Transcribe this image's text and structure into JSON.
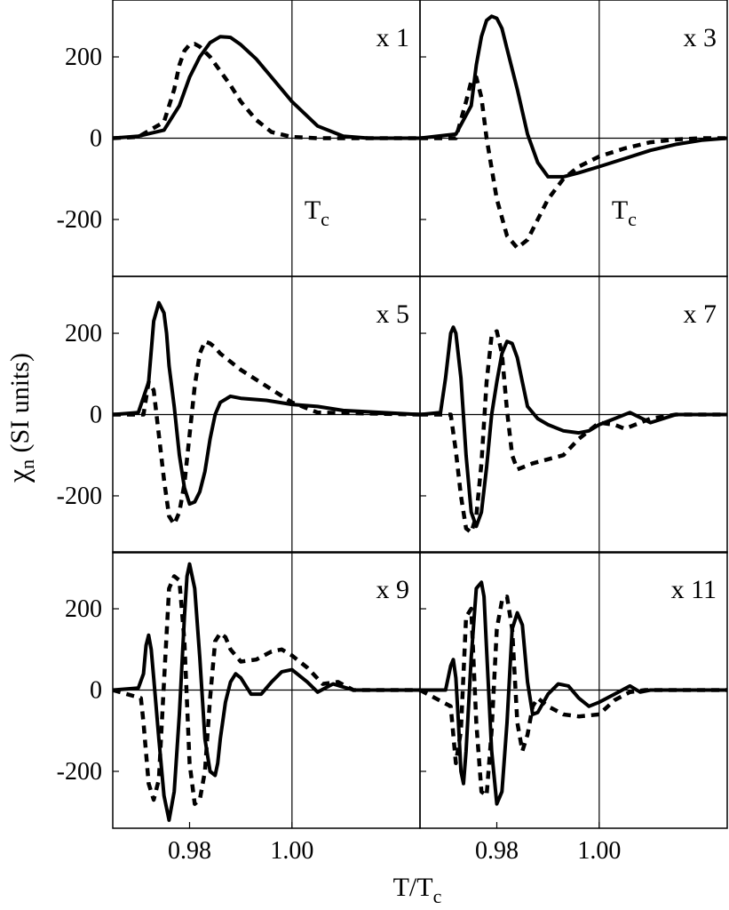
{
  "figure": {
    "ylabel_symbol": "χ",
    "ylabel_sub": "n",
    "ylabel_rest": " (SI units)",
    "xlabel_main": "T/T",
    "xlabel_sub": "c"
  },
  "chart_data": [
    {
      "type": "line",
      "annotation": "x 1",
      "tc_label": "T",
      "tc_sub": "c",
      "xlim": [
        0.965,
        1.025
      ],
      "ylim": [
        -340,
        340
      ],
      "yticks": [
        "200",
        "0",
        "-200"
      ],
      "ytick_values": [
        200,
        0,
        -200
      ],
      "xticks": [],
      "xtick_values": [],
      "tc_x": 1.0,
      "series": [
        {
          "style": "solid",
          "x": [
            0.965,
            0.97,
            0.975,
            0.978,
            0.98,
            0.982,
            0.984,
            0.986,
            0.988,
            0.99,
            0.993,
            0.996,
            1.0,
            1.005,
            1.01,
            1.015,
            1.025
          ],
          "y": [
            0,
            5,
            20,
            80,
            150,
            200,
            235,
            250,
            248,
            230,
            195,
            150,
            90,
            30,
            5,
            0,
            0
          ]
        },
        {
          "style": "dashed",
          "x": [
            0.965,
            0.97,
            0.975,
            0.977,
            0.978,
            0.979,
            0.98,
            0.981,
            0.982,
            0.984,
            0.986,
            0.988,
            0.99,
            0.993,
            0.996,
            1.0,
            1.005,
            1.025
          ],
          "y": [
            0,
            3,
            40,
            120,
            180,
            215,
            230,
            232,
            225,
            200,
            165,
            130,
            90,
            45,
            15,
            3,
            0,
            0
          ]
        }
      ]
    },
    {
      "type": "line",
      "annotation": "x 3",
      "tc_label": "T",
      "tc_sub": "c",
      "xlim": [
        0.965,
        1.025
      ],
      "ylim": [
        -340,
        340
      ],
      "yticks": [],
      "ytick_values": [
        200,
        0,
        -200
      ],
      "xticks": [],
      "xtick_values": [],
      "tc_x": 1.0,
      "series": [
        {
          "style": "solid",
          "x": [
            0.965,
            0.972,
            0.975,
            0.976,
            0.977,
            0.978,
            0.979,
            0.98,
            0.981,
            0.982,
            0.984,
            0.986,
            0.988,
            0.99,
            0.993,
            0.996,
            1.0,
            1.005,
            1.01,
            1.015,
            1.02,
            1.025
          ],
          "y": [
            0,
            10,
            80,
            180,
            250,
            290,
            300,
            295,
            270,
            220,
            120,
            10,
            -60,
            -95,
            -95,
            -85,
            -70,
            -50,
            -30,
            -15,
            -5,
            0
          ]
        },
        {
          "style": "dashed",
          "x": [
            0.965,
            0.972,
            0.974,
            0.975,
            0.976,
            0.977,
            0.978,
            0.98,
            0.982,
            0.984,
            0.986,
            0.988,
            0.99,
            0.993,
            0.996,
            1.0,
            1.005,
            1.01,
            1.015,
            1.02,
            1.025
          ],
          "y": [
            0,
            0,
            90,
            140,
            150,
            100,
            0,
            -150,
            -240,
            -270,
            -250,
            -200,
            -150,
            -100,
            -70,
            -45,
            -25,
            -10,
            -3,
            0,
            0
          ]
        }
      ]
    },
    {
      "type": "line",
      "annotation": "x 5",
      "tc_label": "",
      "tc_sub": "",
      "xlim": [
        0.965,
        1.025
      ],
      "ylim": [
        -340,
        340
      ],
      "yticks": [
        "200",
        "0",
        "-200"
      ],
      "ytick_values": [
        200,
        0,
        -200
      ],
      "xticks": [],
      "xtick_values": [],
      "tc_x": 1.0,
      "series": [
        {
          "style": "solid",
          "x": [
            0.965,
            0.97,
            0.972,
            0.973,
            0.974,
            0.975,
            0.9755,
            0.976,
            0.977,
            0.978,
            0.979,
            0.98,
            0.981,
            0.982,
            0.983,
            0.984,
            0.985,
            0.986,
            0.988,
            0.99,
            0.995,
            1.0,
            1.005,
            1.01,
            1.025
          ],
          "y": [
            0,
            5,
            80,
            230,
            275,
            250,
            200,
            120,
            20,
            -100,
            -180,
            -220,
            -215,
            -190,
            -140,
            -60,
            0,
            30,
            45,
            40,
            35,
            25,
            20,
            10,
            0
          ]
        },
        {
          "style": "dashed",
          "x": [
            0.965,
            0.971,
            0.972,
            0.973,
            0.974,
            0.975,
            0.976,
            0.977,
            0.978,
            0.979,
            0.98,
            0.981,
            0.982,
            0.983,
            0.984,
            0.985,
            0.986,
            0.988,
            0.99,
            0.995,
            1.0,
            1.003,
            1.005,
            1.025
          ],
          "y": [
            0,
            0,
            80,
            60,
            -50,
            -160,
            -250,
            -270,
            -240,
            -170,
            -50,
            70,
            150,
            180,
            175,
            165,
            150,
            130,
            110,
            70,
            30,
            15,
            5,
            0
          ]
        }
      ]
    },
    {
      "type": "line",
      "annotation": "x 7",
      "tc_label": "",
      "tc_sub": "",
      "xlim": [
        0.965,
        1.025
      ],
      "ylim": [
        -340,
        340
      ],
      "yticks": [],
      "ytick_values": [
        200,
        0,
        -200
      ],
      "xticks": [],
      "xtick_values": [],
      "tc_x": 1.0,
      "series": [
        {
          "style": "solid",
          "x": [
            0.965,
            0.969,
            0.97,
            0.971,
            0.9715,
            0.972,
            0.973,
            0.974,
            0.975,
            0.976,
            0.977,
            0.978,
            0.979,
            0.98,
            0.981,
            0.982,
            0.983,
            0.984,
            0.985,
            0.986,
            0.988,
            0.99,
            0.993,
            0.996,
            0.998,
            1.0,
            1.003,
            1.006,
            1.01,
            1.015,
            1.025
          ],
          "y": [
            0,
            5,
            90,
            200,
            215,
            200,
            90,
            -100,
            -240,
            -275,
            -240,
            -130,
            0,
            80,
            150,
            180,
            175,
            140,
            80,
            20,
            -10,
            -25,
            -40,
            -45,
            -40,
            -25,
            -10,
            5,
            -20,
            0,
            0
          ]
        },
        {
          "style": "dashed",
          "x": [
            0.965,
            0.971,
            0.972,
            0.973,
            0.974,
            0.975,
            0.976,
            0.977,
            0.978,
            0.979,
            0.98,
            0.981,
            0.982,
            0.983,
            0.984,
            0.985,
            0.987,
            0.99,
            0.993,
            0.996,
            1.0,
            1.003,
            1.005,
            1.01,
            1.015,
            1.025
          ],
          "y": [
            0,
            0,
            -90,
            -200,
            -280,
            -290,
            -250,
            -120,
            80,
            195,
            205,
            150,
            10,
            -100,
            -135,
            -130,
            -120,
            -110,
            -100,
            -60,
            -20,
            -25,
            -35,
            -10,
            0,
            0
          ]
        }
      ]
    },
    {
      "type": "line",
      "annotation": "x 9",
      "tc_label": "",
      "tc_sub": "",
      "xlim": [
        0.965,
        1.025
      ],
      "ylim": [
        -340,
        340
      ],
      "yticks": [
        "200",
        "0",
        "-200"
      ],
      "ytick_values": [
        200,
        0,
        -200
      ],
      "xticks": [
        "0.98",
        "1.00"
      ],
      "xtick_values": [
        0.98,
        1.0
      ],
      "tc_x": 1.0,
      "series": [
        {
          "style": "solid",
          "x": [
            0.965,
            0.97,
            0.971,
            0.9715,
            0.972,
            0.9725,
            0.973,
            0.974,
            0.975,
            0.976,
            0.977,
            0.978,
            0.979,
            0.9795,
            0.98,
            0.981,
            0.982,
            0.983,
            0.984,
            0.985,
            0.9855,
            0.986,
            0.987,
            0.988,
            0.989,
            0.99,
            0.992,
            0.994,
            0.996,
            0.998,
            1.0,
            1.003,
            1.005,
            1.008,
            1.012,
            1.025
          ],
          "y": [
            0,
            5,
            40,
            110,
            135,
            100,
            30,
            -120,
            -260,
            -320,
            -250,
            -60,
            180,
            280,
            310,
            250,
            80,
            -120,
            -200,
            -210,
            -180,
            -120,
            -30,
            20,
            40,
            30,
            -10,
            -10,
            20,
            45,
            50,
            20,
            -5,
            15,
            0,
            0
          ]
        },
        {
          "style": "dashed",
          "x": [
            0.965,
            0.9705,
            0.971,
            0.972,
            0.973,
            0.974,
            0.975,
            0.976,
            0.977,
            0.978,
            0.979,
            0.98,
            0.981,
            0.982,
            0.983,
            0.984,
            0.985,
            0.986,
            0.987,
            0.988,
            0.99,
            0.993,
            0.996,
            0.998,
            1.0,
            1.003,
            1.006,
            1.009,
            1.012,
            1.025
          ],
          "y": [
            0,
            -20,
            -80,
            -230,
            -270,
            -220,
            20,
            250,
            280,
            270,
            120,
            -180,
            -280,
            -270,
            -200,
            -20,
            120,
            140,
            130,
            100,
            70,
            75,
            95,
            100,
            85,
            55,
            15,
            20,
            0,
            0
          ]
        }
      ]
    },
    {
      "type": "line",
      "annotation": "x 11",
      "tc_label": "",
      "tc_sub": "",
      "xlim": [
        0.965,
        1.025
      ],
      "ylim": [
        -340,
        340
      ],
      "yticks": [],
      "ytick_values": [
        200,
        0,
        -200
      ],
      "xticks": [
        "0.98",
        "1.00"
      ],
      "xtick_values": [
        0.98,
        1.0
      ],
      "tc_x": 1.0,
      "series": [
        {
          "style": "solid",
          "x": [
            0.965,
            0.97,
            0.971,
            0.9715,
            0.972,
            0.9725,
            0.973,
            0.9735,
            0.974,
            0.975,
            0.976,
            0.977,
            0.9775,
            0.978,
            0.979,
            0.98,
            0.981,
            0.982,
            0.983,
            0.984,
            0.985,
            0.986,
            0.987,
            0.988,
            0.99,
            0.992,
            0.994,
            0.996,
            0.998,
            1.0,
            1.003,
            1.006,
            1.008,
            1.01,
            1.025
          ],
          "y": [
            0,
            0,
            60,
            75,
            30,
            -80,
            -200,
            -230,
            -150,
            80,
            250,
            265,
            230,
            100,
            -150,
            -280,
            -250,
            -80,
            150,
            190,
            160,
            20,
            -60,
            -55,
            -10,
            15,
            10,
            -20,
            -40,
            -30,
            -10,
            10,
            -5,
            0,
            0
          ]
        },
        {
          "style": "dashed",
          "x": [
            0.965,
            0.971,
            0.972,
            0.973,
            0.974,
            0.975,
            0.976,
            0.977,
            0.978,
            0.979,
            0.98,
            0.981,
            0.982,
            0.983,
            0.984,
            0.985,
            0.986,
            0.987,
            0.988,
            0.99,
            0.993,
            0.996,
            1.0,
            1.003,
            1.006,
            1.009,
            1.025
          ],
          "y": [
            0,
            -40,
            -180,
            -100,
            180,
            200,
            -80,
            -250,
            -260,
            -100,
            150,
            220,
            230,
            150,
            -80,
            -150,
            -110,
            -40,
            -20,
            -40,
            -60,
            -65,
            -60,
            -25,
            -5,
            0,
            0
          ]
        }
      ]
    }
  ]
}
